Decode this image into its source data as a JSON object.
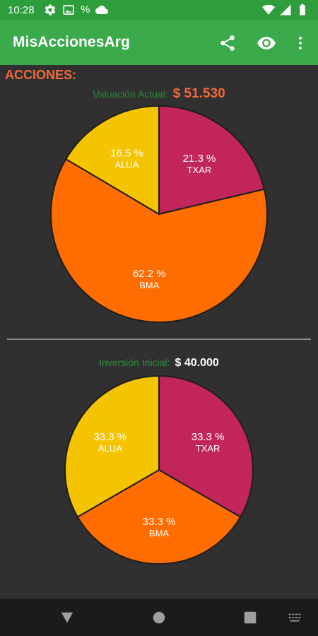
{
  "status_bar": {
    "time": "10:28",
    "battery_text": "%",
    "icons": [
      "settings-icon",
      "photo-icon",
      "percent-icon",
      "cloud-icon",
      "wifi-icon",
      "signal-icon",
      "battery-icon"
    ]
  },
  "app_bar": {
    "title": "MisAccionesArg",
    "actions": [
      "share-icon",
      "eye-icon",
      "more-vert-icon"
    ]
  },
  "section_heading": "ACCIONES:",
  "valuation": {
    "label": "Valuación Actual:",
    "value": "$ 51.530"
  },
  "initial": {
    "label": "Inversión Inicial:",
    "value": "$ 40.000"
  },
  "colors": {
    "TXAR": "#c2255a",
    "BMA": "#ff6d00",
    "ALUA": "#f5c400",
    "accent_orange": "#f1693a",
    "label_green": "#2f8a3a",
    "appbar": "#3aaa4b",
    "statusbar": "#2e9d3c"
  },
  "chart_data": [
    {
      "type": "pie",
      "title": "",
      "slices": [
        {
          "label": "TXAR",
          "value": 21.3,
          "text": "21.3 %",
          "color": "#c2255a"
        },
        {
          "label": "BMA",
          "value": 62.2,
          "text": "62.2 %",
          "color": "#ff6d00"
        },
        {
          "label": "ALUA",
          "value": 16.5,
          "text": "16.5 %",
          "color": "#f5c400"
        }
      ]
    },
    {
      "type": "pie",
      "title": "",
      "slices": [
        {
          "label": "TXAR",
          "value": 33.3,
          "text": "33.3 %",
          "color": "#c2255a"
        },
        {
          "label": "BMA",
          "value": 33.3,
          "text": "33.3 %",
          "color": "#ff6d00"
        },
        {
          "label": "ALUA",
          "value": 33.3,
          "text": "33.3 %",
          "color": "#f5c400"
        }
      ]
    }
  ],
  "nav_bar": {
    "buttons": [
      "back-icon",
      "home-icon",
      "recents-icon",
      "keyboard-icon"
    ]
  }
}
